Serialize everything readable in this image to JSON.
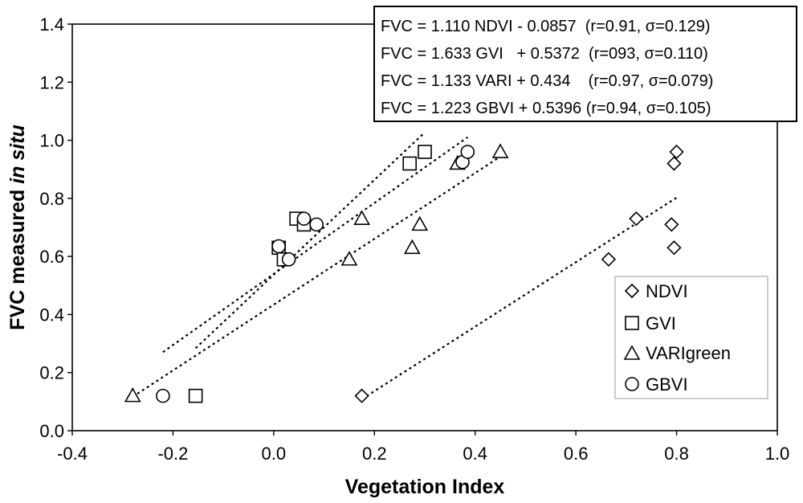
{
  "chart_data": {
    "type": "scatter",
    "title": "",
    "xlabel": "Vegetation Index",
    "ylabel_main": "FVC measured ",
    "ylabel_italic": "in situ",
    "xlim": [
      -0.4,
      1.0
    ],
    "ylim": [
      0.0,
      1.4
    ],
    "x_ticks": [
      "-0.4",
      "-0.2",
      "0.0",
      "0.2",
      "0.4",
      "0.6",
      "0.8",
      "1.0"
    ],
    "y_ticks": [
      "0.0",
      "0.2",
      "0.4",
      "0.6",
      "0.8",
      "1.0",
      "1.2",
      "1.4"
    ],
    "grid": false,
    "legend_position": "bottom-right",
    "series": [
      {
        "name": "NDVI",
        "marker": "diamond",
        "x": [
          0.175,
          0.665,
          0.72,
          0.79,
          0.795,
          0.8,
          0.795
        ],
        "y": [
          0.12,
          0.59,
          0.73,
          0.71,
          0.92,
          0.96,
          0.63
        ],
        "fit_x": [
          0.175,
          0.8
        ]
      },
      {
        "name": "GVI",
        "marker": "square",
        "x": [
          -0.155,
          0.01,
          0.02,
          0.045,
          0.06,
          0.27,
          0.3
        ],
        "y": [
          0.12,
          0.63,
          0.59,
          0.73,
          0.71,
          0.92,
          0.96
        ],
        "fit_x": [
          -0.155,
          0.3
        ]
      },
      {
        "name": "VARIgreen",
        "marker": "triangle",
        "x": [
          -0.28,
          0.15,
          0.175,
          0.275,
          0.29,
          0.365,
          0.45
        ],
        "y": [
          0.12,
          0.59,
          0.73,
          0.63,
          0.71,
          0.92,
          0.96
        ],
        "fit_x": [
          -0.28,
          0.45
        ]
      },
      {
        "name": "GBVI",
        "marker": "circle",
        "x": [
          -0.22,
          0.01,
          0.03,
          0.06,
          0.085,
          0.375,
          0.385
        ],
        "y": [
          0.12,
          0.635,
          0.59,
          0.73,
          0.71,
          0.925,
          0.96
        ],
        "fit_x": [
          -0.22,
          0.385
        ]
      }
    ],
    "annotations": [
      "FVC = 1.110 NDVI - 0.0857  (r=0.91, σ=0.129)",
      "FVC = 1.633 GVI   + 0.5372  (r=093, σ=0.110)",
      "FVC = 1.133 VARI + 0.434    (r=0.97, σ=0.079)",
      "FVC = 1.223 GBVI + 0.5396 (r=0.94, σ=0.105)"
    ],
    "fits": [
      {
        "series": "NDVI",
        "slope": 1.11,
        "intercept": -0.0857
      },
      {
        "series": "GVI",
        "slope": 1.633,
        "intercept": 0.5372
      },
      {
        "series": "VARIgreen",
        "slope": 1.133,
        "intercept": 0.434
      },
      {
        "series": "GBVI",
        "slope": 1.223,
        "intercept": 0.5396
      }
    ]
  }
}
